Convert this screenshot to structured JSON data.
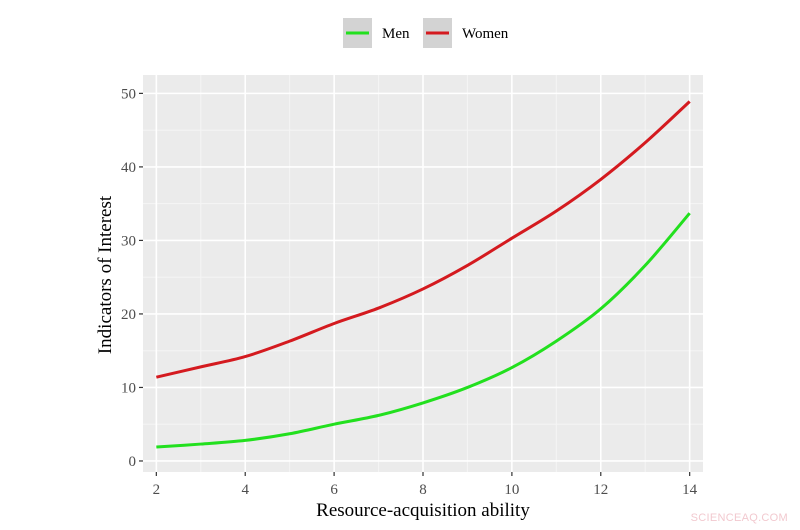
{
  "chart_data": {
    "type": "line",
    "title": "",
    "xlabel": "Resource-acquisition ability",
    "ylabel": "Indicators of Interest",
    "xlim": [
      1.7,
      14.3
    ],
    "ylim": [
      -1.5,
      52.5
    ],
    "xticks": [
      2,
      4,
      6,
      8,
      10,
      12,
      14
    ],
    "yticks": [
      0,
      10,
      20,
      30,
      40,
      50
    ],
    "grid": true,
    "legend_position": "top",
    "x": [
      2,
      3,
      4,
      5,
      6,
      7,
      8,
      9,
      10,
      11,
      12,
      13,
      14
    ],
    "series": [
      {
        "name": "Men",
        "color": "#22e01e",
        "values": [
          1.9,
          2.3,
          2.8,
          3.7,
          5.0,
          6.2,
          7.9,
          10.0,
          12.7,
          16.3,
          20.7,
          26.6,
          33.7
        ]
      },
      {
        "name": "Women",
        "color": "#d41a1f",
        "values": [
          11.4,
          12.8,
          14.2,
          16.3,
          18.7,
          20.8,
          23.4,
          26.6,
          30.3,
          34.0,
          38.3,
          43.3,
          48.9
        ]
      }
    ]
  },
  "legend": {
    "items": [
      {
        "label": "Men",
        "color": "#22e01e"
      },
      {
        "label": "Women",
        "color": "#d41a1f"
      }
    ]
  },
  "colors": {
    "panel_bg": "#ebebeb",
    "grid_major": "#ffffff",
    "grid_minor": "#f5f5f5",
    "tick_text": "#4d4d4d"
  },
  "watermark": "SCIENCEAQ.COM"
}
